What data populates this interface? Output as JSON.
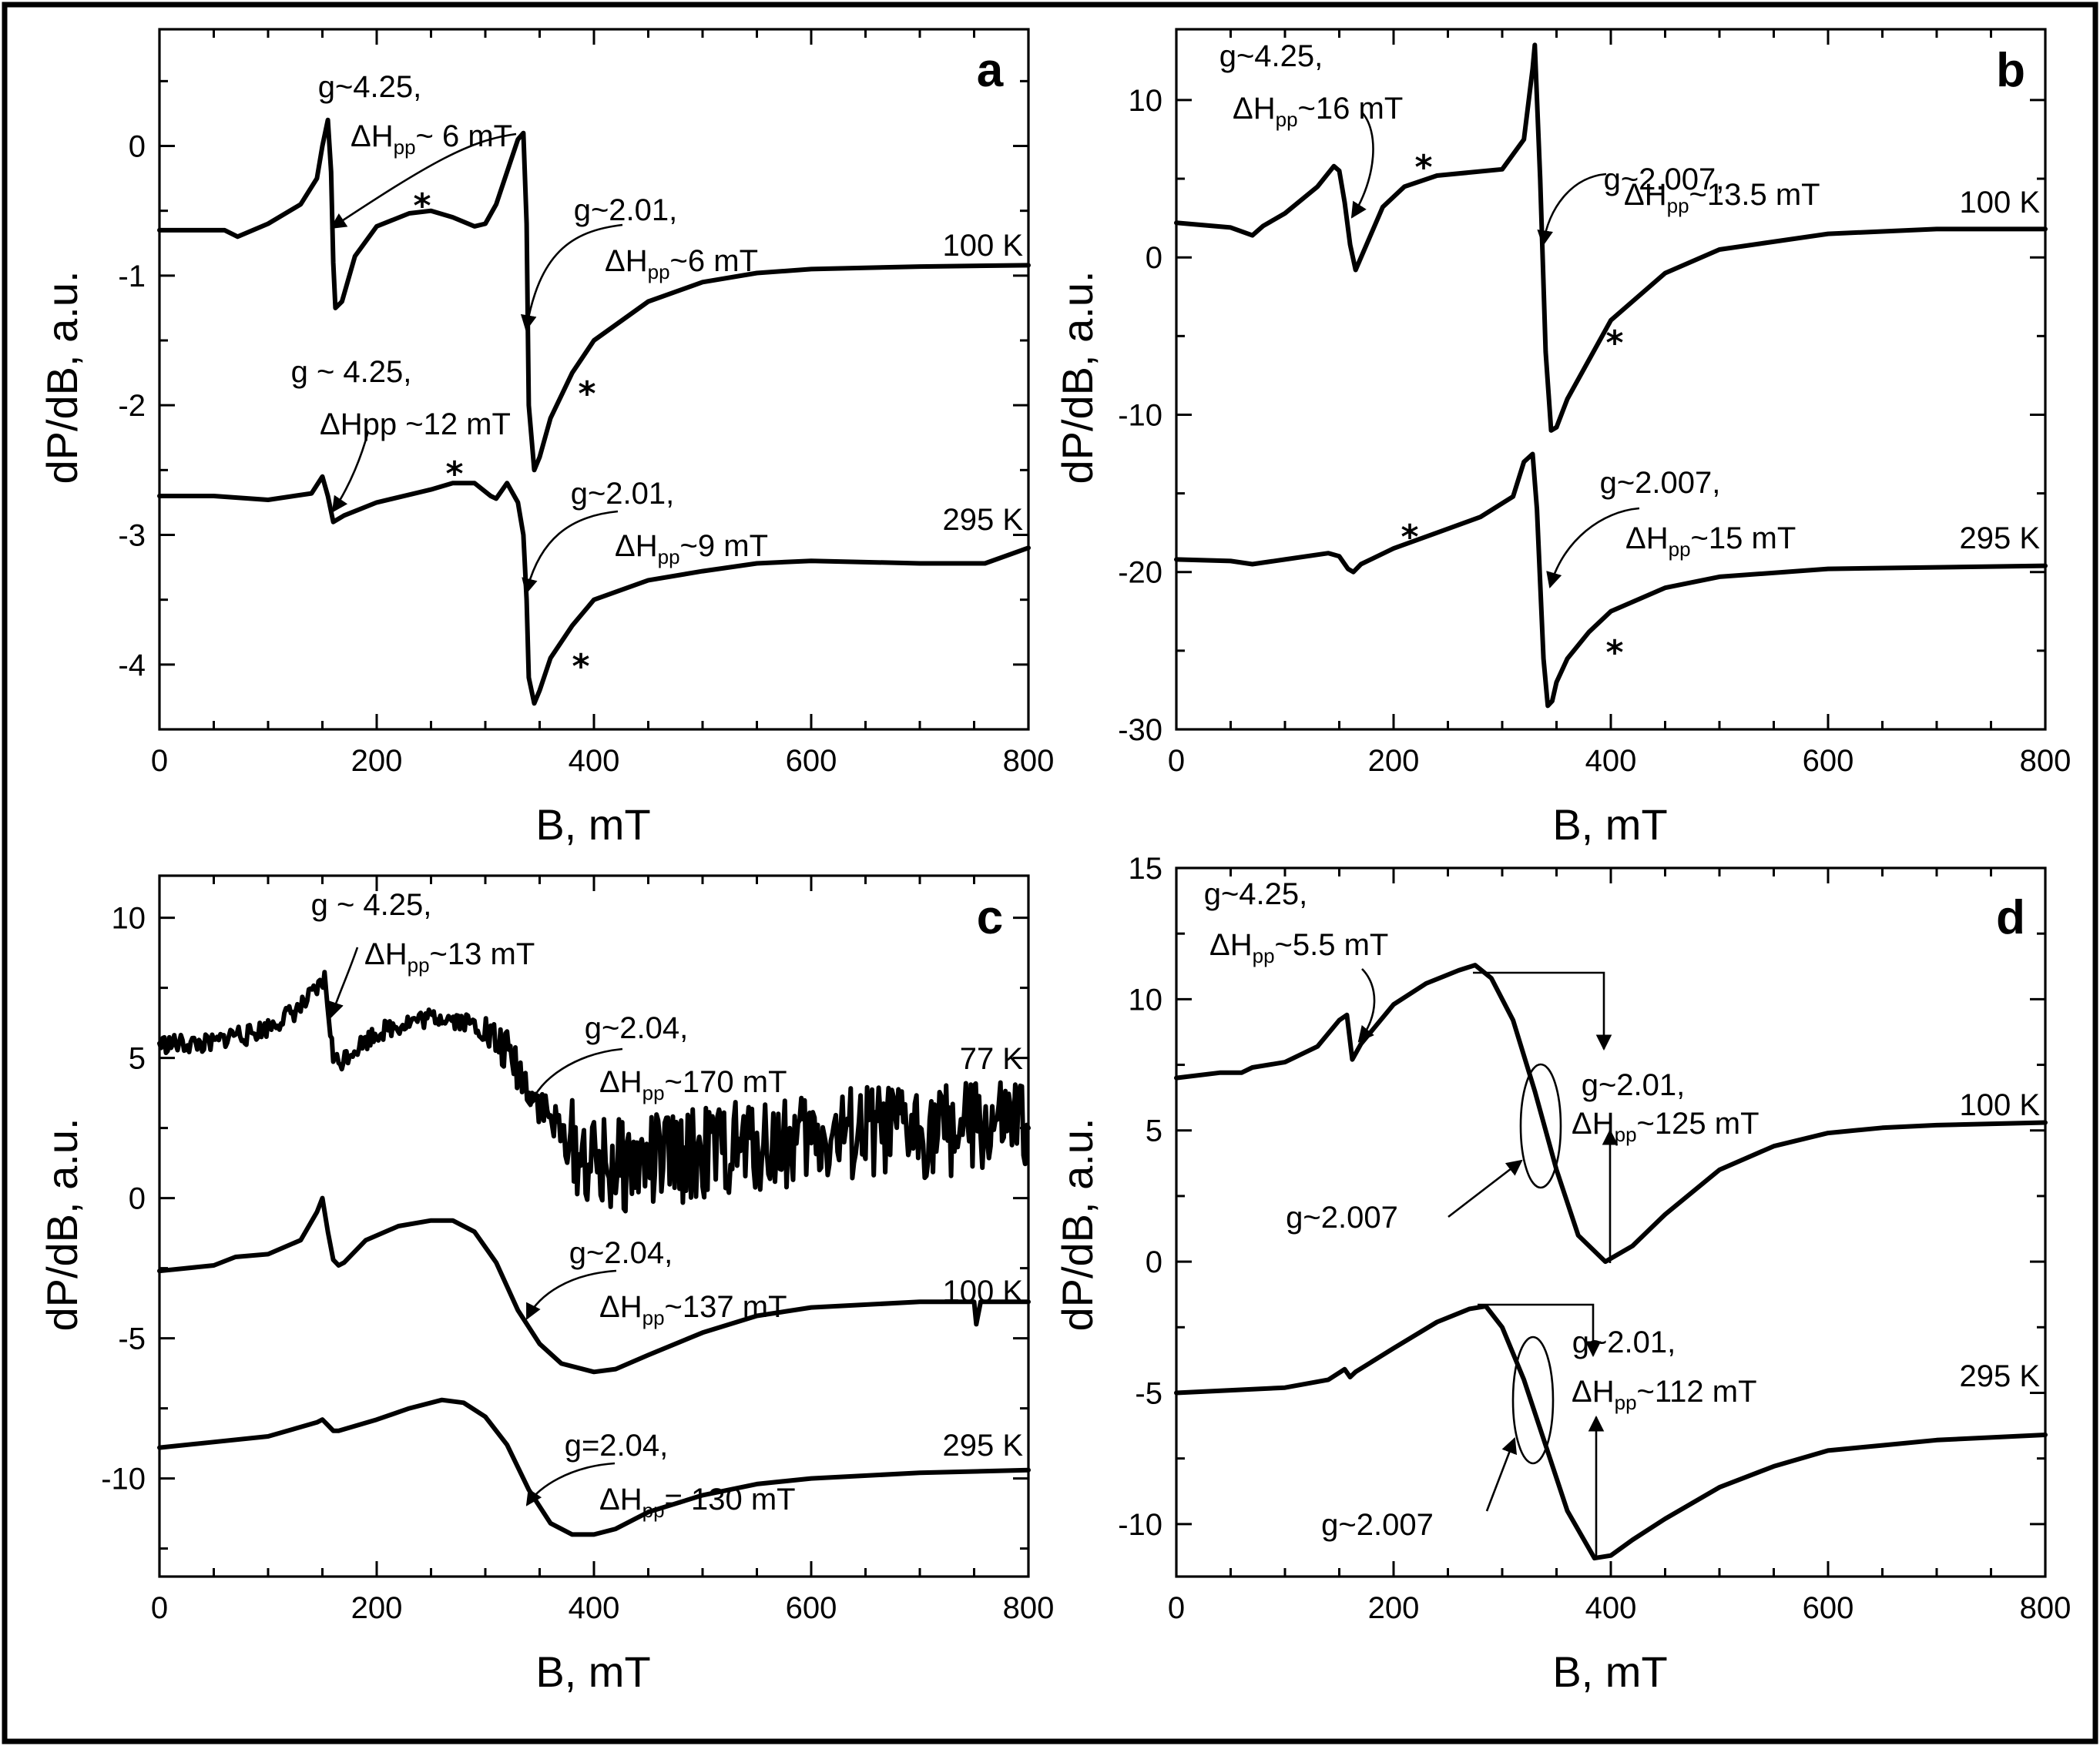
{
  "chart_data": [
    {
      "panel": "a",
      "type": "line",
      "xlabel": "B, mT",
      "ylabel": "dP/dB, a.u.",
      "xlim": [
        0,
        800
      ],
      "ylim": [
        -4.5,
        0.9
      ],
      "xticks": [
        "0",
        "200",
        "400",
        "600",
        "800"
      ],
      "yticks": [
        "0",
        "-1",
        "-2",
        "-3",
        "-4"
      ],
      "series": [
        {
          "name": "100 K",
          "x": [
            0,
            60,
            72,
            100,
            130,
            145,
            150,
            155,
            158,
            160,
            162,
            168,
            180,
            200,
            230,
            250,
            270,
            290,
            300,
            310,
            320,
            330,
            335,
            338,
            340,
            345,
            350,
            360,
            380,
            400,
            450,
            500,
            550,
            600,
            700,
            800
          ],
          "y": [
            -0.65,
            -0.65,
            -0.7,
            -0.6,
            -0.45,
            -0.25,
            0.0,
            0.2,
            -0.2,
            -0.9,
            -1.25,
            -1.2,
            -0.85,
            -0.62,
            -0.52,
            -0.5,
            -0.55,
            -0.62,
            -0.6,
            -0.45,
            -0.2,
            0.05,
            0.1,
            -0.6,
            -2.0,
            -2.5,
            -2.4,
            -2.1,
            -1.75,
            -1.5,
            -1.2,
            -1.05,
            -0.98,
            -0.95,
            -0.93,
            -0.92
          ]
        },
        {
          "name": "295 K",
          "x": [
            0,
            50,
            100,
            140,
            150,
            155,
            160,
            170,
            200,
            250,
            270,
            290,
            305,
            310,
            320,
            330,
            335,
            338,
            340,
            345,
            350,
            360,
            380,
            400,
            450,
            500,
            550,
            600,
            700,
            760,
            800
          ],
          "y": [
            -2.7,
            -2.7,
            -2.73,
            -2.68,
            -2.55,
            -2.7,
            -2.9,
            -2.85,
            -2.75,
            -2.65,
            -2.6,
            -2.6,
            -2.7,
            -2.72,
            -2.6,
            -2.75,
            -3.0,
            -3.5,
            -4.1,
            -4.3,
            -4.2,
            -3.95,
            -3.7,
            -3.5,
            -3.35,
            -3.28,
            -3.22,
            -3.2,
            -3.22,
            -3.22,
            -3.1
          ]
        }
      ],
      "annotations": [
        {
          "text": "g~4.25,",
          "text2": "ΔH",
          "sub": "pp",
          "text3": "~ 6 mT"
        },
        {
          "text": "g~2.01,",
          "text2": "ΔH",
          "sub": "pp",
          "text3": "~6 mT"
        },
        {
          "text": "g ~ 4.25,",
          "text2": "ΔHpp ~12 mT"
        },
        {
          "text": "g~2.01,",
          "text2": "ΔH",
          "sub": "pp",
          "text3": "~9 mT"
        }
      ],
      "temperatures": [
        "100 K",
        "295 K"
      ],
      "markers": [
        "*",
        "*",
        "*",
        "*"
      ]
    },
    {
      "panel": "b",
      "type": "line",
      "xlabel": "B, mT",
      "ylabel": "dP/dB, a.u.",
      "xlim": [
        0,
        800
      ],
      "ylim": [
        -30,
        14.5
      ],
      "xticks": [
        "0",
        "200",
        "400",
        "600",
        "800"
      ],
      "yticks": [
        "10",
        "0",
        "-10",
        "-20",
        "-30"
      ],
      "series": [
        {
          "name": "100 K",
          "x": [
            0,
            50,
            70,
            80,
            100,
            130,
            145,
            150,
            155,
            160,
            165,
            175,
            190,
            210,
            240,
            270,
            300,
            320,
            328,
            330,
            335,
            340,
            345,
            350,
            360,
            380,
            400,
            450,
            500,
            600,
            700,
            800
          ],
          "y": [
            2.2,
            1.9,
            1.4,
            2.0,
            2.8,
            4.5,
            5.8,
            5.5,
            3.5,
            0.8,
            -0.8,
            0.8,
            3.2,
            4.5,
            5.2,
            5.4,
            5.6,
            7.5,
            12.0,
            13.5,
            5.0,
            -6.0,
            -11.0,
            -10.8,
            -9.0,
            -6.5,
            -4.0,
            -1.0,
            0.5,
            1.5,
            1.8,
            1.8
          ]
        },
        {
          "name": "295 K",
          "x": [
            0,
            50,
            70,
            100,
            140,
            150,
            158,
            163,
            170,
            200,
            240,
            280,
            310,
            320,
            328,
            332,
            338,
            342,
            346,
            350,
            360,
            380,
            400,
            450,
            500,
            600,
            700,
            800
          ],
          "y": [
            -19.2,
            -19.3,
            -19.5,
            -19.2,
            -18.8,
            -19.0,
            -19.8,
            -20.0,
            -19.5,
            -18.5,
            -17.5,
            -16.5,
            -15.2,
            -13.0,
            -12.5,
            -16.0,
            -25.5,
            -28.5,
            -28.2,
            -27.0,
            -25.5,
            -23.8,
            -22.5,
            -21.0,
            -20.3,
            -19.8,
            -19.7,
            -19.6
          ]
        }
      ],
      "annotations": [
        {
          "text": "g~4.25,",
          "text2": "ΔH",
          "sub": "pp",
          "text3": "~16 mT"
        },
        {
          "text": "g~2.007,",
          "text2": "ΔH",
          "sub": "pp",
          "text3": "~13.5 mT"
        },
        {
          "text": "g~2.007,",
          "text2": "ΔH",
          "sub": "pp",
          "text3": "~15 mT"
        }
      ],
      "temperatures": [
        "100 K",
        "295 K"
      ],
      "markers": [
        "*",
        "*",
        "*",
        "*"
      ]
    },
    {
      "panel": "c",
      "type": "line",
      "xlabel": "B, mT",
      "ylabel": "dP/dB, a.u.",
      "xlim": [
        0,
        800
      ],
      "ylim": [
        -13.5,
        11.5
      ],
      "xticks": [
        "0",
        "200",
        "400",
        "600",
        "800"
      ],
      "yticks": [
        "10",
        "5",
        "0",
        "-5",
        "-10"
      ],
      "series": [
        {
          "name": "77 K",
          "x": [
            0,
            50,
            70,
            80,
            100,
            130,
            145,
            152,
            156,
            160,
            165,
            175,
            200,
            230,
            260,
            290,
            320,
            340,
            360,
            380,
            400,
            420,
            450,
            500,
            550,
            600,
            650,
            700,
            750,
            800
          ],
          "y": [
            5.5,
            5.5,
            5.9,
            5.8,
            6.1,
            6.8,
            7.4,
            7.8,
            6.5,
            5.0,
            4.8,
            5.2,
            5.9,
            6.3,
            6.5,
            6.2,
            5.2,
            4.0,
            2.8,
            1.8,
            1.2,
            1.1,
            1.3,
            1.6,
            1.9,
            2.1,
            2.3,
            2.4,
            2.5,
            2.5
          ],
          "noisy": true
        },
        {
          "name": "100 K",
          "x": [
            0,
            50,
            70,
            100,
            130,
            145,
            150,
            155,
            160,
            165,
            170,
            190,
            220,
            250,
            270,
            290,
            310,
            330,
            350,
            370,
            400,
            420,
            450,
            500,
            550,
            600,
            700,
            750,
            752,
            756,
            760,
            800
          ],
          "y": [
            -2.6,
            -2.4,
            -2.1,
            -2.0,
            -1.5,
            -0.5,
            0.0,
            -1.2,
            -2.2,
            -2.4,
            -2.3,
            -1.5,
            -1.0,
            -0.8,
            -0.8,
            -1.2,
            -2.3,
            -4.0,
            -5.2,
            -5.9,
            -6.2,
            -6.1,
            -5.6,
            -4.8,
            -4.2,
            -3.9,
            -3.7,
            -3.7,
            -4.5,
            -3.7,
            -3.7,
            -3.7
          ]
        },
        {
          "name": "295 K",
          "x": [
            0,
            50,
            100,
            145,
            150,
            155,
            160,
            165,
            200,
            230,
            260,
            280,
            300,
            320,
            340,
            360,
            380,
            400,
            420,
            450,
            500,
            550,
            600,
            700,
            800
          ],
          "y": [
            -8.9,
            -8.7,
            -8.5,
            -8.0,
            -7.9,
            -8.1,
            -8.3,
            -8.3,
            -7.9,
            -7.5,
            -7.2,
            -7.3,
            -7.8,
            -8.8,
            -10.4,
            -11.6,
            -12.0,
            -12.0,
            -11.8,
            -11.2,
            -10.6,
            -10.2,
            -10.0,
            -9.8,
            -9.7
          ]
        }
      ],
      "annotations": [
        {
          "text": "g ~ 4.25,",
          "text2": "ΔH",
          "sub": "pp",
          "text3": "~13 mT"
        },
        {
          "text": "g~2.04,",
          "text2": "ΔH",
          "sub": "pp",
          "text3": "~170 mT"
        },
        {
          "text": "g~2.04,",
          "text2": "ΔH",
          "sub": "pp",
          "text3": "~137 mT"
        },
        {
          "text": "g=2.04,",
          "text2": "ΔH",
          "sub": "pp",
          "text3": "= 130 mT"
        }
      ],
      "temperatures": [
        "77 K",
        "100 K",
        "295 K"
      ]
    },
    {
      "panel": "d",
      "type": "line",
      "xlabel": "B, mT",
      "ylabel": "dP/dB, a.u.",
      "xlim": [
        0,
        800
      ],
      "ylim": [
        -12,
        15
      ],
      "xticks": [
        "0",
        "200",
        "400",
        "600",
        "800"
      ],
      "yticks": [
        "15",
        "10",
        "5",
        "0",
        "-5",
        "-10"
      ],
      "series": [
        {
          "name": "100 K",
          "x": [
            0,
            40,
            60,
            70,
            100,
            130,
            150,
            157,
            162,
            170,
            200,
            230,
            260,
            275,
            290,
            310,
            330,
            340,
            350,
            370,
            395,
            420,
            450,
            500,
            550,
            600,
            650,
            700,
            800
          ],
          "y": [
            7.0,
            7.2,
            7.2,
            7.4,
            7.6,
            8.2,
            9.2,
            9.4,
            7.7,
            8.3,
            9.8,
            10.6,
            11.1,
            11.3,
            10.8,
            9.2,
            6.5,
            5.0,
            3.5,
            1.0,
            0.0,
            0.6,
            1.8,
            3.5,
            4.4,
            4.9,
            5.1,
            5.2,
            5.3
          ]
        },
        {
          "name": "295 K",
          "x": [
            0,
            50,
            100,
            140,
            155,
            160,
            165,
            200,
            240,
            270,
            285,
            300,
            320,
            340,
            360,
            385,
            400,
            420,
            450,
            500,
            550,
            600,
            650,
            700,
            800
          ],
          "y": [
            -5.0,
            -4.9,
            -4.8,
            -4.5,
            -4.1,
            -4.4,
            -4.2,
            -3.3,
            -2.3,
            -1.8,
            -1.7,
            -2.5,
            -4.5,
            -7.0,
            -9.5,
            -11.3,
            -11.2,
            -10.6,
            -9.8,
            -8.6,
            -7.8,
            -7.2,
            -7.0,
            -6.8,
            -6.6
          ]
        }
      ],
      "annotations": [
        {
          "text": "g~4.25,",
          "text2": "ΔH",
          "sub": "pp",
          "text3": "~5.5 mT"
        },
        {
          "text": "g~2.01,",
          "text2": "ΔH",
          "sub": "pp",
          "text3": "~125 mT"
        },
        {
          "text": "g~2.007"
        },
        {
          "text": "g~2.01,",
          "text2": "ΔH",
          "sub": "pp",
          "text3": "~112 mT"
        },
        {
          "text": "g~2.007"
        }
      ],
      "temperatures": [
        "100 K",
        "295 K"
      ]
    }
  ]
}
